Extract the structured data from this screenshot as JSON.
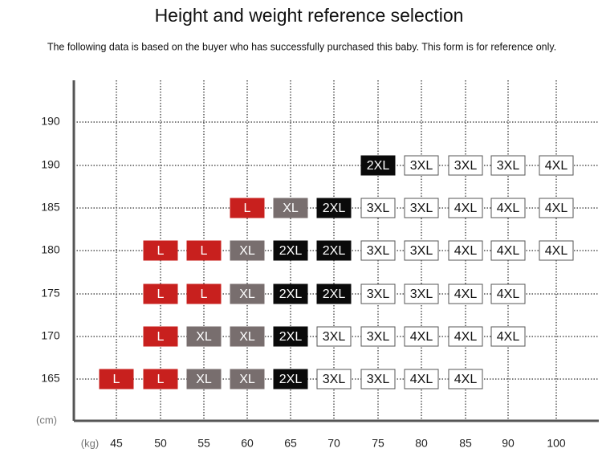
{
  "header": {
    "title": "Height and weight reference selection",
    "subtitle": "The following data is based on the buyer who has successfully purchased this baby. This form is for reference only."
  },
  "y_axis": {
    "unit": "(cm)",
    "labels": [
      "190",
      "190",
      "185",
      "180",
      "175",
      "170",
      "165"
    ]
  },
  "x_axis": {
    "unit": "(kg)",
    "labels": [
      "45",
      "50",
      "55",
      "60",
      "65",
      "70",
      "75",
      "80",
      "85",
      "90",
      "100"
    ]
  },
  "colors": {
    "L": "#c8201e",
    "XL": "#786e6e",
    "2XL": "#0a0a0a",
    "3XL": "#ffffff",
    "4XL": "#ffffff"
  },
  "grid": {
    "rows": [
      {
        "cells": [
          null,
          null,
          null,
          null,
          null,
          null,
          null,
          null,
          null,
          null,
          null
        ]
      },
      {
        "cells": [
          null,
          null,
          null,
          null,
          null,
          null,
          "2XL",
          "3XL",
          "3XL",
          "3XL",
          "4XL"
        ]
      },
      {
        "cells": [
          null,
          null,
          null,
          "L",
          "XL",
          "2XL",
          "3XL",
          "3XL",
          "4XL",
          "4XL",
          "4XL"
        ]
      },
      {
        "cells": [
          null,
          "L",
          "L",
          "XL",
          "2XL",
          "2XL",
          "3XL",
          "3XL",
          "4XL",
          "4XL",
          "4XL"
        ]
      },
      {
        "cells": [
          null,
          "L",
          "L",
          "XL",
          "2XL",
          "2XL",
          "3XL",
          "3XL",
          "4XL",
          "4XL",
          null
        ]
      },
      {
        "cells": [
          null,
          "L",
          "XL",
          "XL",
          "2XL",
          "3XL",
          "3XL",
          "4XL",
          "4XL",
          "4XL",
          null
        ]
      },
      {
        "cells": [
          "L",
          "L",
          "XL",
          "XL",
          "2XL",
          "3XL",
          "3XL",
          "4XL",
          "4XL",
          null,
          null
        ]
      }
    ]
  }
}
